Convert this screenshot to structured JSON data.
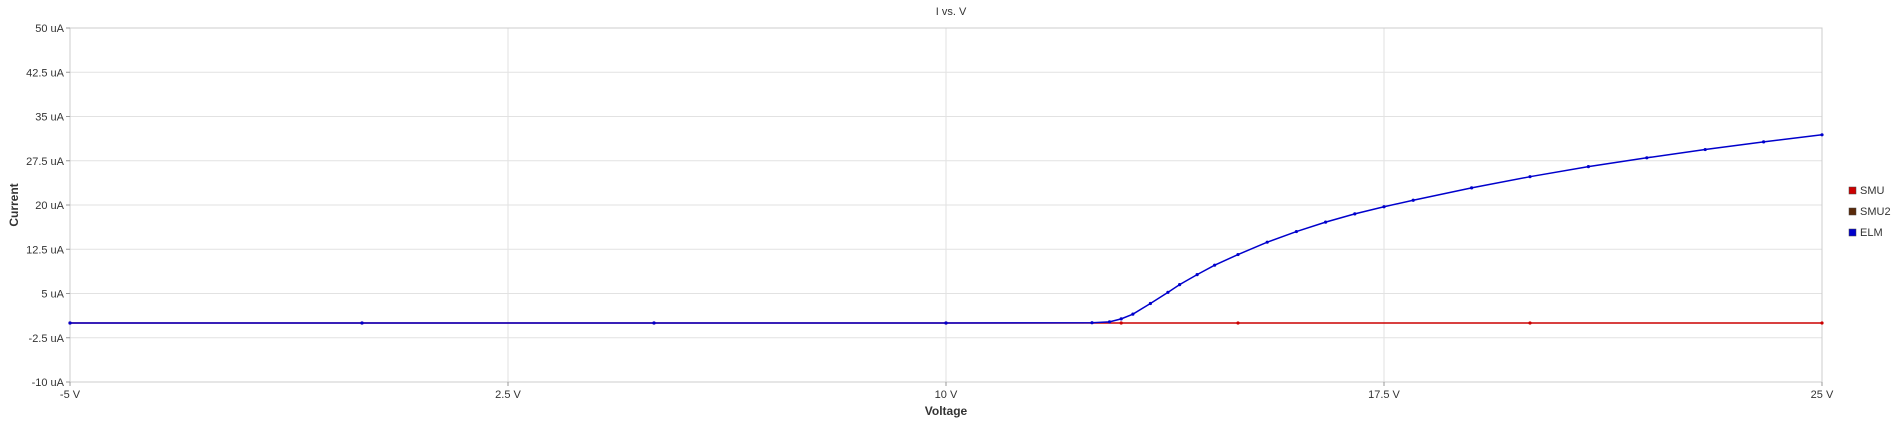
{
  "chart_data": {
    "type": "line",
    "title": "I vs. V",
    "xlabel": "Voltage",
    "ylabel": "Current",
    "xlim": [
      -5,
      25
    ],
    "ylim": [
      -10,
      50
    ],
    "x_ticks": [
      -5,
      2.5,
      10,
      17.5,
      25
    ],
    "x_tick_labels": [
      "-5 V",
      "2.5 V",
      "10 V",
      "17.5 V",
      "25 V"
    ],
    "y_ticks": [
      -10,
      -2.5,
      5,
      12.5,
      20,
      27.5,
      35,
      42.5,
      50
    ],
    "y_tick_labels": [
      "-10 uA",
      "-2.5 uA",
      "5 uA",
      "12.5 uA",
      "20 uA",
      "27.5 uA",
      "35 uA",
      "42.5 uA",
      "50 uA"
    ],
    "grid": true,
    "legend_position": "right",
    "series": [
      {
        "name": "SMU",
        "color": "#cc0000",
        "x": [
          -5,
          0,
          5,
          10,
          13,
          15,
          20,
          25
        ],
        "y": [
          0,
          0,
          0,
          0,
          0,
          0,
          0,
          0
        ]
      },
      {
        "name": "SMU2",
        "color": "#5a2a0a",
        "x": [],
        "y": []
      },
      {
        "name": "ELM",
        "color": "#0000cc",
        "x": [
          -5,
          0,
          5,
          10,
          12.5,
          12.8,
          13.0,
          13.2,
          13.5,
          13.8,
          14.0,
          14.3,
          14.6,
          15.0,
          15.5,
          16.0,
          16.5,
          17.0,
          17.5,
          18.0,
          19.0,
          20.0,
          21.0,
          22.0,
          23.0,
          24.0,
          25.0
        ],
        "y": [
          0,
          0,
          0,
          0,
          0.05,
          0.2,
          0.7,
          1.5,
          3.3,
          5.2,
          6.5,
          8.2,
          9.8,
          11.6,
          13.7,
          15.5,
          17.1,
          18.5,
          19.7,
          20.8,
          22.9,
          24.8,
          26.5,
          28.0,
          29.4,
          30.7,
          31.9
        ]
      }
    ]
  }
}
